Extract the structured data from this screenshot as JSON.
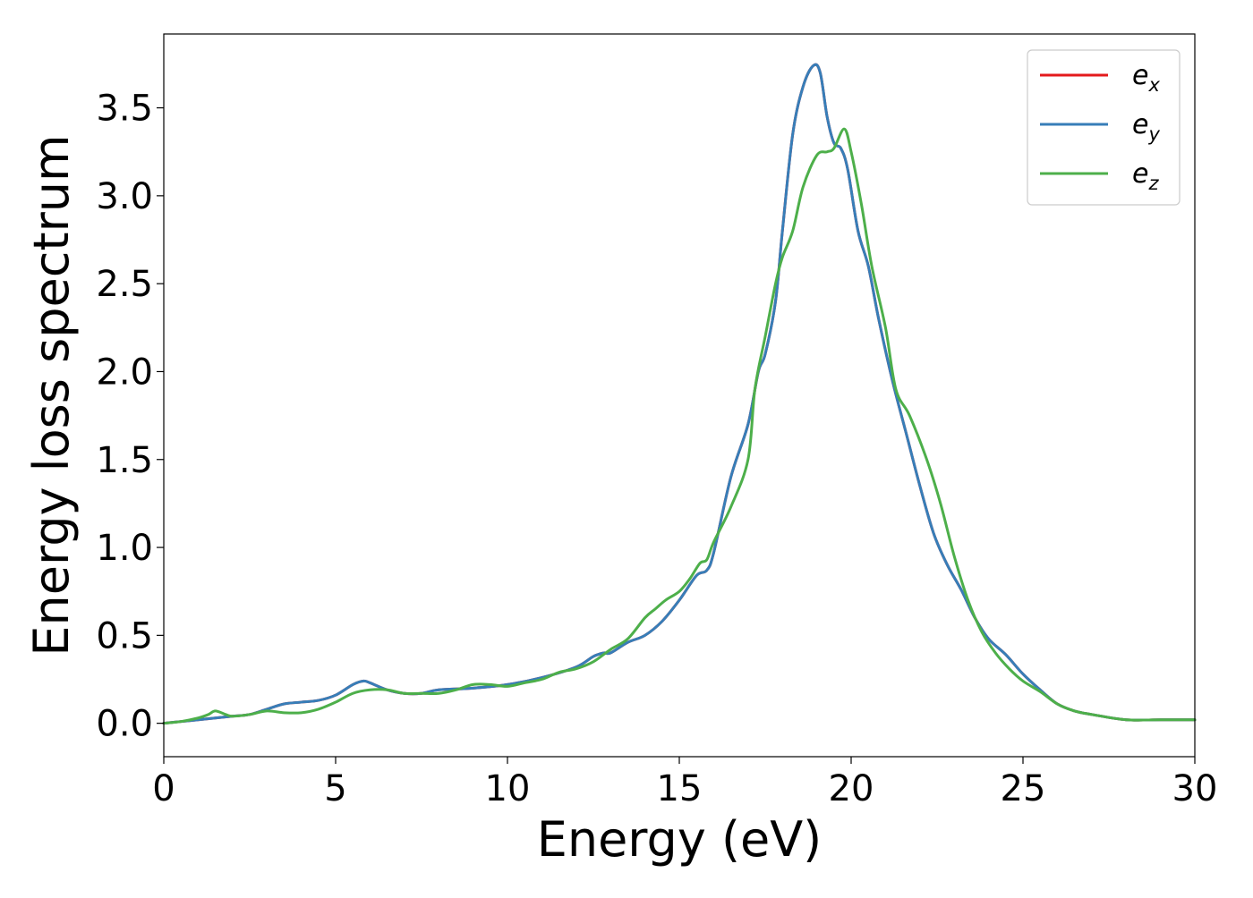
{
  "chart_data": {
    "type": "line",
    "xlabel": "Energy (eV)",
    "ylabel": "Energy loss spectrum",
    "xlim": [
      0,
      30
    ],
    "ylim": [
      -0.19,
      3.92
    ],
    "xticks": [
      0,
      5,
      10,
      15,
      20,
      25,
      30
    ],
    "xtick_labels": [
      "0",
      "5",
      "10",
      "15",
      "20",
      "25",
      "30"
    ],
    "yticks": [
      0.0,
      0.5,
      1.0,
      1.5,
      2.0,
      2.5,
      3.0,
      3.5
    ],
    "ytick_labels": [
      "0.0",
      "0.5",
      "1.0",
      "1.5",
      "2.0",
      "2.5",
      "3.0",
      "3.5"
    ],
    "grid": false,
    "legend_position": "top-right",
    "series": [
      {
        "name": "e_x",
        "label_base": "e",
        "label_sub": "x",
        "color": "#e41a1c",
        "points": [
          [
            0,
            0
          ],
          [
            0.5,
            0.01
          ],
          [
            1,
            0.02
          ],
          [
            1.5,
            0.03
          ],
          [
            2,
            0.04
          ],
          [
            2.5,
            0.05
          ],
          [
            3,
            0.08
          ],
          [
            3.5,
            0.11
          ],
          [
            4,
            0.12
          ],
          [
            4.5,
            0.13
          ],
          [
            5,
            0.16
          ],
          [
            5.5,
            0.22
          ],
          [
            5.8,
            0.24
          ],
          [
            6,
            0.23
          ],
          [
            6.5,
            0.19
          ],
          [
            7,
            0.17
          ],
          [
            7.5,
            0.17
          ],
          [
            8,
            0.19
          ],
          [
            9,
            0.2
          ],
          [
            10,
            0.22
          ],
          [
            11,
            0.26
          ],
          [
            12,
            0.32
          ],
          [
            12.5,
            0.38
          ],
          [
            12.8,
            0.4
          ],
          [
            13,
            0.4
          ],
          [
            13.5,
            0.46
          ],
          [
            14,
            0.5
          ],
          [
            14.5,
            0.58
          ],
          [
            15,
            0.7
          ],
          [
            15.5,
            0.84
          ],
          [
            15.8,
            0.87
          ],
          [
            16,
            0.97
          ],
          [
            16.5,
            1.4
          ],
          [
            17,
            1.7
          ],
          [
            17.3,
            2.0
          ],
          [
            17.5,
            2.1
          ],
          [
            17.8,
            2.4
          ],
          [
            18,
            2.8
          ],
          [
            18.3,
            3.35
          ],
          [
            18.6,
            3.62
          ],
          [
            18.9,
            3.74
          ],
          [
            19.1,
            3.7
          ],
          [
            19.3,
            3.45
          ],
          [
            19.5,
            3.3
          ],
          [
            19.7,
            3.27
          ],
          [
            19.9,
            3.15
          ],
          [
            20.2,
            2.8
          ],
          [
            20.5,
            2.6
          ],
          [
            20.8,
            2.3
          ],
          [
            21.2,
            1.95
          ],
          [
            21.6,
            1.65
          ],
          [
            22,
            1.35
          ],
          [
            22.4,
            1.08
          ],
          [
            22.8,
            0.9
          ],
          [
            23.2,
            0.76
          ],
          [
            23.6,
            0.6
          ],
          [
            24,
            0.48
          ],
          [
            24.5,
            0.39
          ],
          [
            25,
            0.28
          ],
          [
            25.5,
            0.19
          ],
          [
            26,
            0.11
          ],
          [
            26.5,
            0.07
          ],
          [
            27,
            0.05
          ],
          [
            28,
            0.02
          ],
          [
            29,
            0.02
          ],
          [
            30,
            0.02
          ]
        ]
      },
      {
        "name": "e_y",
        "label_base": "e",
        "label_sub": "y",
        "color": "#377eb8",
        "points": [
          [
            0,
            0
          ],
          [
            0.5,
            0.01
          ],
          [
            1,
            0.02
          ],
          [
            1.5,
            0.03
          ],
          [
            2,
            0.04
          ],
          [
            2.5,
            0.05
          ],
          [
            3,
            0.08
          ],
          [
            3.5,
            0.11
          ],
          [
            4,
            0.12
          ],
          [
            4.5,
            0.13
          ],
          [
            5,
            0.16
          ],
          [
            5.5,
            0.22
          ],
          [
            5.8,
            0.24
          ],
          [
            6,
            0.23
          ],
          [
            6.5,
            0.19
          ],
          [
            7,
            0.17
          ],
          [
            7.5,
            0.17
          ],
          [
            8,
            0.19
          ],
          [
            9,
            0.2
          ],
          [
            10,
            0.22
          ],
          [
            11,
            0.26
          ],
          [
            12,
            0.32
          ],
          [
            12.5,
            0.38
          ],
          [
            12.8,
            0.4
          ],
          [
            13,
            0.4
          ],
          [
            13.5,
            0.46
          ],
          [
            14,
            0.5
          ],
          [
            14.5,
            0.58
          ],
          [
            15,
            0.7
          ],
          [
            15.5,
            0.84
          ],
          [
            15.8,
            0.87
          ],
          [
            16,
            0.97
          ],
          [
            16.5,
            1.4
          ],
          [
            17,
            1.7
          ],
          [
            17.3,
            2.0
          ],
          [
            17.5,
            2.1
          ],
          [
            17.8,
            2.4
          ],
          [
            18,
            2.8
          ],
          [
            18.3,
            3.35
          ],
          [
            18.6,
            3.62
          ],
          [
            18.9,
            3.74
          ],
          [
            19.1,
            3.7
          ],
          [
            19.3,
            3.45
          ],
          [
            19.5,
            3.3
          ],
          [
            19.7,
            3.27
          ],
          [
            19.9,
            3.15
          ],
          [
            20.2,
            2.8
          ],
          [
            20.5,
            2.6
          ],
          [
            20.8,
            2.3
          ],
          [
            21.2,
            1.95
          ],
          [
            21.6,
            1.65
          ],
          [
            22,
            1.35
          ],
          [
            22.4,
            1.08
          ],
          [
            22.8,
            0.9
          ],
          [
            23.2,
            0.76
          ],
          [
            23.6,
            0.6
          ],
          [
            24,
            0.48
          ],
          [
            24.5,
            0.39
          ],
          [
            25,
            0.28
          ],
          [
            25.5,
            0.19
          ],
          [
            26,
            0.11
          ],
          [
            26.5,
            0.07
          ],
          [
            27,
            0.05
          ],
          [
            28,
            0.02
          ],
          [
            29,
            0.02
          ],
          [
            30,
            0.02
          ]
        ]
      },
      {
        "name": "e_z",
        "label_base": "e",
        "label_sub": "z",
        "color": "#4daf4a",
        "points": [
          [
            0,
            0
          ],
          [
            0.5,
            0.01
          ],
          [
            1,
            0.03
          ],
          [
            1.3,
            0.05
          ],
          [
            1.5,
            0.07
          ],
          [
            1.8,
            0.05
          ],
          [
            2,
            0.04
          ],
          [
            2.5,
            0.05
          ],
          [
            3,
            0.07
          ],
          [
            3.5,
            0.06
          ],
          [
            4,
            0.06
          ],
          [
            4.5,
            0.08
          ],
          [
            5,
            0.12
          ],
          [
            5.5,
            0.17
          ],
          [
            6,
            0.19
          ],
          [
            6.5,
            0.19
          ],
          [
            7,
            0.17
          ],
          [
            7.5,
            0.17
          ],
          [
            8,
            0.17
          ],
          [
            8.5,
            0.19
          ],
          [
            9,
            0.22
          ],
          [
            9.5,
            0.22
          ],
          [
            10,
            0.21
          ],
          [
            10.5,
            0.23
          ],
          [
            11,
            0.25
          ],
          [
            11.5,
            0.29
          ],
          [
            12,
            0.31
          ],
          [
            12.5,
            0.35
          ],
          [
            13,
            0.42
          ],
          [
            13.5,
            0.48
          ],
          [
            14,
            0.6
          ],
          [
            14.3,
            0.65
          ],
          [
            14.6,
            0.7
          ],
          [
            15,
            0.75
          ],
          [
            15.3,
            0.82
          ],
          [
            15.6,
            0.91
          ],
          [
            15.8,
            0.93
          ],
          [
            16,
            1.03
          ],
          [
            16.5,
            1.23
          ],
          [
            17,
            1.5
          ],
          [
            17.2,
            1.9
          ],
          [
            17.5,
            2.2
          ],
          [
            17.8,
            2.5
          ],
          [
            18,
            2.65
          ],
          [
            18.3,
            2.8
          ],
          [
            18.6,
            3.05
          ],
          [
            19,
            3.23
          ],
          [
            19.3,
            3.25
          ],
          [
            19.5,
            3.27
          ],
          [
            19.8,
            3.38
          ],
          [
            20,
            3.25
          ],
          [
            20.3,
            2.95
          ],
          [
            20.6,
            2.6
          ],
          [
            21,
            2.25
          ],
          [
            21.3,
            1.9
          ],
          [
            21.7,
            1.75
          ],
          [
            22.2,
            1.5
          ],
          [
            22.6,
            1.25
          ],
          [
            23,
            0.95
          ],
          [
            23.4,
            0.7
          ],
          [
            23.8,
            0.52
          ],
          [
            24.2,
            0.4
          ],
          [
            24.6,
            0.31
          ],
          [
            25,
            0.24
          ],
          [
            25.5,
            0.18
          ],
          [
            26,
            0.11
          ],
          [
            26.5,
            0.07
          ],
          [
            27,
            0.05
          ],
          [
            28,
            0.02
          ],
          [
            29,
            0.02
          ],
          [
            30,
            0.02
          ]
        ]
      }
    ]
  }
}
